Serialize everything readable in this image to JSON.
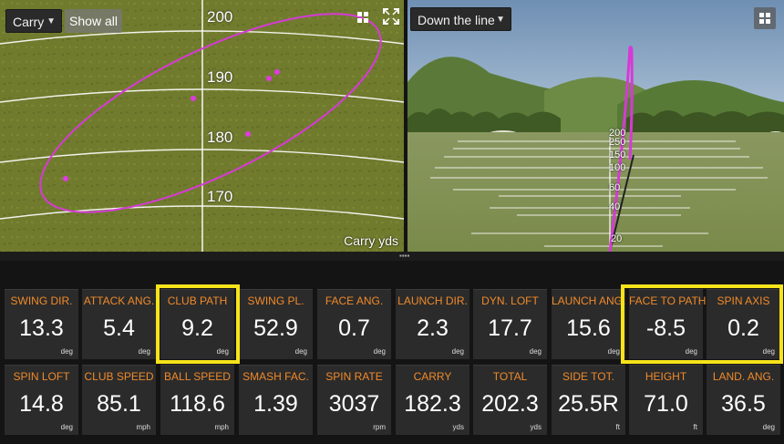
{
  "left_view": {
    "dropdown_label": "Carry",
    "show_all_label": "Show all",
    "axis_labels": [
      "200",
      "190",
      "180",
      "170"
    ],
    "caption": "Carry  yds",
    "colors": {
      "ellipse": "#d63ad6",
      "points": "#e03ae0"
    },
    "icons": {
      "grid": "grid-icon",
      "expand": "expand-icon"
    }
  },
  "right_view": {
    "dropdown_label": "Down the line",
    "distance_labels": [
      "200",
      "250",
      "150",
      "100",
      "60",
      "40",
      "20"
    ],
    "icons": {
      "grid": "grid-icon"
    }
  },
  "metrics": [
    {
      "label": "SWING DIR.",
      "value": "13.3",
      "unit": "deg"
    },
    {
      "label": "ATTACK ANG.",
      "value": "5.4",
      "unit": "deg"
    },
    {
      "label": "CLUB PATH",
      "value": "9.2",
      "unit": "deg"
    },
    {
      "label": "SWING PL.",
      "value": "52.9",
      "unit": "deg"
    },
    {
      "label": "FACE ANG.",
      "value": "0.7",
      "unit": "deg"
    },
    {
      "label": "LAUNCH DIR.",
      "value": "2.3",
      "unit": "deg"
    },
    {
      "label": "DYN. LOFT",
      "value": "17.7",
      "unit": "deg"
    },
    {
      "label": "LAUNCH ANG.",
      "value": "15.6",
      "unit": "deg"
    },
    {
      "label": "FACE TO PATH",
      "value": "-8.5",
      "unit": "deg"
    },
    {
      "label": "SPIN AXIS",
      "value": "0.2",
      "unit": "deg"
    },
    {
      "label": "SPIN LOFT",
      "value": "14.8",
      "unit": "deg"
    },
    {
      "label": "CLUB SPEED",
      "value": "85.1",
      "unit": "mph"
    },
    {
      "label": "BALL SPEED",
      "value": "118.6",
      "unit": "mph"
    },
    {
      "label": "SMASH FAC.",
      "value": "1.39",
      "unit": ""
    },
    {
      "label": "SPIN RATE",
      "value": "3037",
      "unit": "rpm"
    },
    {
      "label": "CARRY",
      "value": "182.3",
      "unit": "yds"
    },
    {
      "label": "TOTAL",
      "value": "202.3",
      "unit": "yds"
    },
    {
      "label": "SIDE TOT.",
      "value": "25.5R",
      "unit": "ft"
    },
    {
      "label": "HEIGHT",
      "value": "71.0",
      "unit": "ft"
    },
    {
      "label": "LAND. ANG.",
      "value": "36.5",
      "unit": "deg"
    }
  ],
  "highlight_color": "#f6e31a",
  "label_color": "#f08a2b"
}
